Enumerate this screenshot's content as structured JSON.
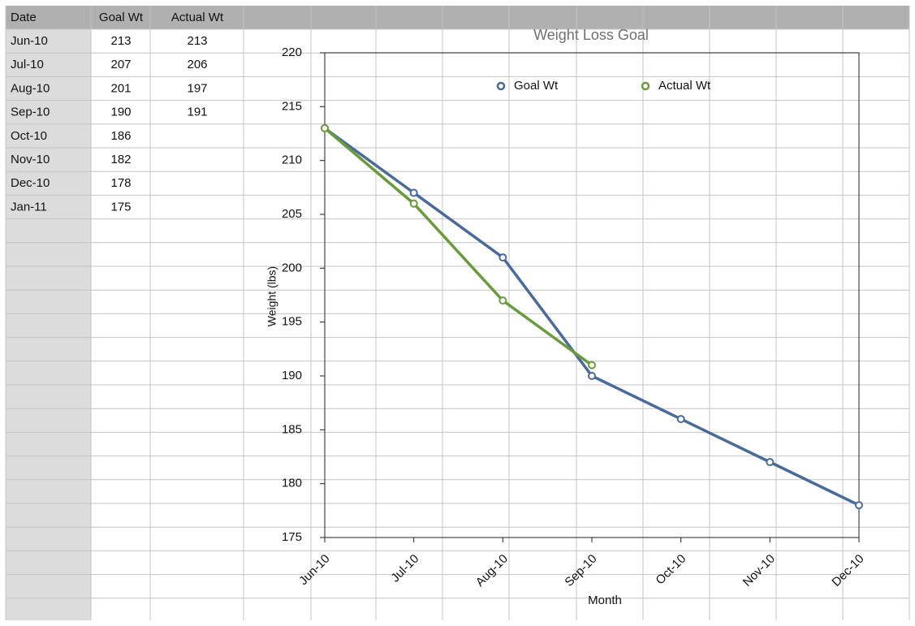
{
  "table": {
    "columns": [
      "Date",
      "Goal Wt",
      "Actual Wt"
    ],
    "rows": [
      [
        "Jun-10",
        213,
        213
      ],
      [
        "Jul-10",
        207,
        206
      ],
      [
        "Aug-10",
        201,
        197
      ],
      [
        "Sep-10",
        190,
        191
      ],
      [
        "Oct-10",
        186
      ],
      [
        "Nov-10",
        182
      ],
      [
        "Dec-10",
        178
      ],
      [
        "Jan-11",
        175
      ]
    ]
  },
  "chart_data": {
    "type": "line",
    "title": "Weight Loss Goal",
    "x_label": "Month",
    "y_label": "Weight (lbs)",
    "categories": [
      "Jun-10",
      "Jul-10",
      "Aug-10",
      "Sep-10",
      "Oct-10",
      "Nov-10",
      "Dec-10"
    ],
    "series": [
      {
        "name": "Goal Wt",
        "color": "#4a6a9a",
        "values": [
          213,
          207,
          201,
          190,
          186,
          182,
          178
        ]
      },
      {
        "name": "Actual Wt",
        "color": "#6a9a3e",
        "values": [
          213,
          206,
          197,
          191,
          null,
          null,
          null
        ]
      }
    ],
    "ylim": [
      175,
      220
    ],
    "yticks": [
      175,
      180,
      185,
      190,
      195,
      200,
      205,
      210,
      215,
      220
    ],
    "grid": false,
    "legend": "top"
  }
}
